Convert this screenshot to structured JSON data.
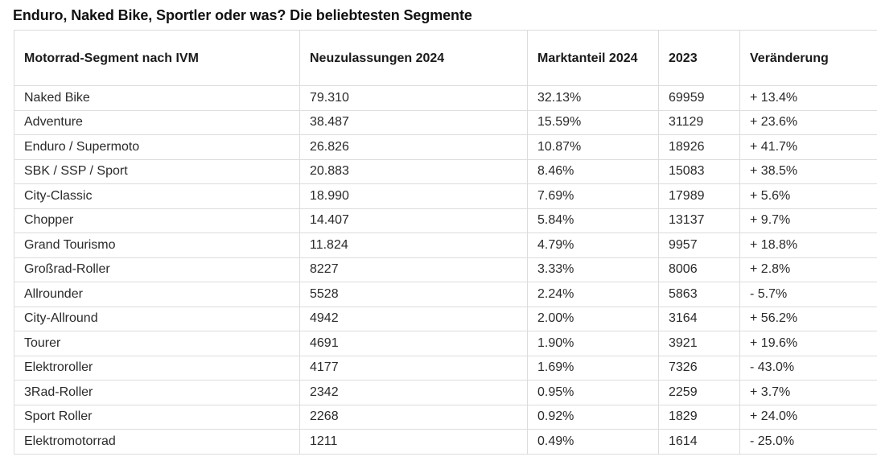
{
  "title": "Enduro, Naked Bike, Sportler oder was? Die beliebtesten Segmente",
  "table": {
    "headers": [
      "Motorrad-Segment nach IVM",
      "Neuzulassungen 2024",
      "Marktanteil 2024",
      "2023",
      "Veränderung"
    ],
    "rows": [
      [
        "Naked Bike",
        "79.310",
        "32.13%",
        "69959",
        "+ 13.4%"
      ],
      [
        "Adventure",
        "38.487",
        "15.59%",
        "31129",
        "+ 23.6%"
      ],
      [
        "Enduro / Supermoto",
        "26.826",
        "10.87%",
        "18926",
        "+ 41.7%"
      ],
      [
        "SBK / SSP / Sport",
        "20.883",
        "8.46%",
        "15083",
        "+ 38.5%"
      ],
      [
        "City-Classic",
        "18.990",
        "7.69%",
        "17989",
        "+ 5.6%"
      ],
      [
        "Chopper",
        "14.407",
        "5.84%",
        "13137",
        "+ 9.7%"
      ],
      [
        "Grand Tourismo",
        "11.824",
        "4.79%",
        "9957",
        "+ 18.8%"
      ],
      [
        "Großrad-Roller",
        "8227",
        "3.33%",
        "8006",
        "+ 2.8%"
      ],
      [
        "Allrounder",
        "5528",
        "2.24%",
        "5863",
        "- 5.7%"
      ],
      [
        "City-Allround",
        "4942",
        "2.00%",
        "3164",
        "+ 56.2%"
      ],
      [
        "Tourer",
        "4691",
        "1.90%",
        "3921",
        "+ 19.6%"
      ],
      [
        "Elektroroller",
        "4177",
        "1.69%",
        "7326",
        "- 43.0%"
      ],
      [
        "3Rad-Roller",
        "2342",
        "0.95%",
        "2259",
        "+ 3.7%"
      ],
      [
        "Sport Roller",
        "2268",
        "0.92%",
        "1829",
        "+ 24.0%"
      ],
      [
        "Elektromotorrad",
        "1211",
        "0.49%",
        "1614",
        "- 25.0%"
      ]
    ]
  }
}
